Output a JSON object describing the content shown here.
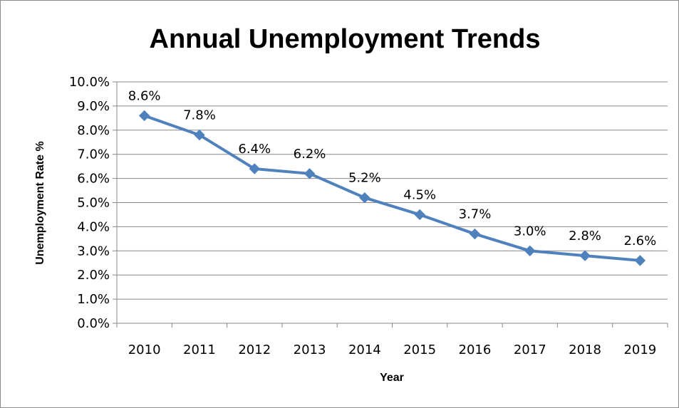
{
  "chart_data": {
    "type": "line",
    "title": "Annual Unemployment Trends",
    "xlabel": "Year",
    "ylabel": "Unemployment Rate %",
    "categories": [
      "2010",
      "2011",
      "2012",
      "2013",
      "2014",
      "2015",
      "2016",
      "2017",
      "2018",
      "2019"
    ],
    "series": [
      {
        "values": [
          8.6,
          7.8,
          6.4,
          6.2,
          5.2,
          4.5,
          3.7,
          3.0,
          2.8,
          2.6
        ],
        "data_labels": [
          "8.6%",
          "7.8%",
          "6.4%",
          "6.2%",
          "5.2%",
          "4.5%",
          "3.7%",
          "3.0%",
          "2.8%",
          "2.6%"
        ],
        "color": "#4f81bd",
        "marker": "diamond"
      }
    ],
    "ylim": [
      0,
      10
    ],
    "yticks": [
      "0.0%",
      "1.0%",
      "2.0%",
      "3.0%",
      "4.0%",
      "5.0%",
      "6.0%",
      "7.0%",
      "8.0%",
      "9.0%",
      "10.0%"
    ],
    "grid": true,
    "legend": "none"
  }
}
